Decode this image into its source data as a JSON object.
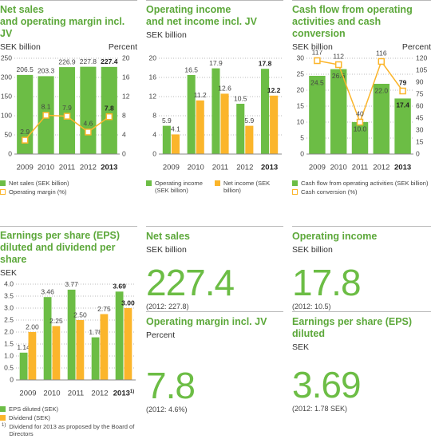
{
  "chart_data": [
    {
      "type": "bar",
      "title": [
        "Net sales",
        "and operating margin incl. JV"
      ],
      "ylabel": "SEK billion",
      "y2label": "Percent",
      "categories": [
        "2009",
        "2010",
        "2011",
        "2012",
        "2013"
      ],
      "series": [
        {
          "name": "Net sales (SEK billion)",
          "type": "bar",
          "color": "#6cbd45",
          "values": [
            206.5,
            203.3,
            226.9,
            227.8,
            227.4
          ]
        },
        {
          "name": "Operating margin (%)",
          "type": "line",
          "axis": "y2",
          "color": "#fbb52b",
          "values": [
            2.9,
            8.1,
            7.9,
            4.6,
            7.8
          ]
        }
      ],
      "ylim": [
        0,
        250
      ],
      "yticks": [
        0,
        50,
        100,
        150,
        200,
        250
      ],
      "y2lim": [
        0,
        20
      ],
      "y2ticks": [
        0,
        4,
        8,
        12,
        16,
        20
      ],
      "grid": true
    },
    {
      "type": "bar",
      "title": [
        "Operating income",
        "and net income incl. JV"
      ],
      "ylabel": "SEK billion",
      "categories": [
        "2009",
        "2010",
        "2011",
        "2012",
        "2013"
      ],
      "series": [
        {
          "name": "Operating income (SEK billion)",
          "type": "bar",
          "color": "#6cbd45",
          "values": [
            5.9,
            16.5,
            17.9,
            10.5,
            17.8
          ]
        },
        {
          "name": "Net income (SEK billion)",
          "type": "bar",
          "color": "#fbb52b",
          "values": [
            4.1,
            11.2,
            12.6,
            5.9,
            12.2
          ]
        }
      ],
      "ylim": [
        0,
        20
      ],
      "yticks": [
        0,
        4,
        8,
        12,
        16,
        20
      ],
      "grid": true
    },
    {
      "type": "bar",
      "title": [
        "Cash flow from operating",
        "activities and cash conversion"
      ],
      "ylabel": "SEK billion",
      "y2label": "Percent",
      "categories": [
        "2009",
        "2010",
        "2011",
        "2012",
        "2013"
      ],
      "series": [
        {
          "name": "Cash flow from operating activities (SEK billion)",
          "type": "bar",
          "color": "#6cbd45",
          "values": [
            24.5,
            26.6,
            10,
            22,
            17.4
          ],
          "value_labels": [
            "24.5",
            "26.6",
            "10.0",
            "22.0",
            "17.4"
          ]
        },
        {
          "name": "Cash conversion (%)",
          "type": "line",
          "axis": "y2",
          "color": "#fbb52b",
          "values": [
            117,
            112,
            40,
            116,
            79
          ]
        }
      ],
      "ylim": [
        0,
        30
      ],
      "yticks": [
        0,
        5,
        10,
        15,
        20,
        25,
        30
      ],
      "y2lim": [
        0,
        120
      ],
      "y2ticks": [
        0,
        15,
        30,
        45,
        60,
        75,
        90,
        105,
        120
      ],
      "grid": true
    },
    {
      "type": "bar",
      "title": [
        "Earnings per share (EPS)",
        "diluted and dividend per share"
      ],
      "ylabel": "SEK",
      "categories": [
        "2009",
        "2010",
        "2011",
        "2012",
        "2013"
      ],
      "series": [
        {
          "name": "EPS diluted (SEK)",
          "type": "bar",
          "color": "#6cbd45",
          "values": [
            1.14,
            3.46,
            3.77,
            1.78,
            3.69
          ]
        },
        {
          "name": "Dividend (SEK)",
          "type": "bar",
          "color": "#fbb52b",
          "values": [
            2,
            2.25,
            2.5,
            2.75,
            3
          ],
          "value_labels": [
            "2.00",
            "2.25",
            "2.50",
            "2.75",
            "3.00"
          ]
        }
      ],
      "ylim": [
        0,
        4
      ],
      "yticks": [
        0,
        0.5,
        {
          "value": 1,
          "label": "1.0"
        },
        1.5,
        {
          "value": 2,
          "label": "2.0"
        },
        2.5,
        {
          "value": 3,
          "label": "3.0"
        },
        3.5,
        {
          "value": 4,
          "label": "4.0"
        }
      ],
      "grid": true,
      "footnote": {
        "marker": "1)",
        "text": "Dividend for 2013 as proposed by the Board of Directors"
      }
    }
  ],
  "kpis": [
    {
      "title": "Net sales",
      "subtitle": "SEK billion",
      "value": 227.4,
      "note": "(2012: 227.8)"
    },
    {
      "title": "Operating income",
      "subtitle": "SEK billion",
      "value": 17.8,
      "note": "(2012: 10.5)"
    },
    {
      "title": "Operating margin incl. JV",
      "subtitle": "Percent",
      "value": 7.8,
      "note": "(2012: 4.6%)"
    },
    {
      "title": "Earnings per share (EPS) diluted",
      "subtitle": "SEK",
      "value": 3.69,
      "note": "(2012: 1.78 SEK)"
    }
  ]
}
